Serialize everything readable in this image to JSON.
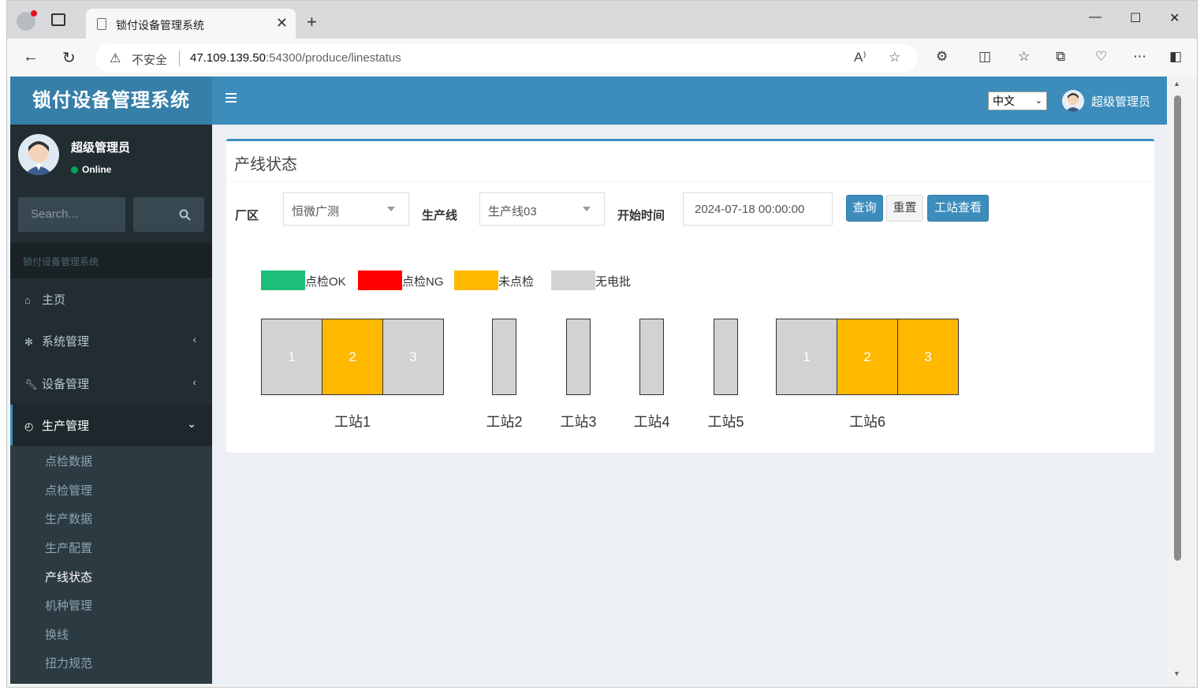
{
  "browser": {
    "tab_title": "锁付设备管理系统",
    "address_insecure": "不安全",
    "url_host": "47.109.139.50",
    "url_rest": ":54300/produce/linestatus"
  },
  "header": {
    "logo": "锁付设备管理系统",
    "language": "中文",
    "user": "超级管理员"
  },
  "sidebar": {
    "user_name": "超级管理员",
    "status": "Online",
    "search_placeholder": "Search...",
    "section_header": "锁付设备管理系统",
    "menu": [
      {
        "label": "主页",
        "icon": "home-icon"
      },
      {
        "label": "系统管理",
        "icon": "gear-icon"
      },
      {
        "label": "设备管理",
        "icon": "wrench-icon"
      },
      {
        "label": "生产管理",
        "icon": "dashboard-icon"
      }
    ],
    "submenu": [
      "点检数据",
      "点检管理",
      "生产数据",
      "生产配置",
      "产线状态",
      "机种管理",
      "换线",
      "扭力规范"
    ],
    "current_submenu": "产线状态"
  },
  "content": {
    "title": "产线状态",
    "filters": {
      "plant_label": "厂区",
      "plant_value": "恒微广测",
      "line_label": "生产线",
      "line_value": "生产线03",
      "start_label": "开始时间",
      "start_value": "2024-07-18 00:00:00"
    },
    "buttons": {
      "query": "查询",
      "reset": "重置",
      "station_view": "工站查看"
    },
    "legend": [
      {
        "label": "点检OK",
        "color": "#1ebe78"
      },
      {
        "label": "点检NG",
        "color": "#ff0000"
      },
      {
        "label": "未点检",
        "color": "#ffb800"
      },
      {
        "label": "无电批",
        "color": "#d2d2d2"
      }
    ],
    "stations": [
      {
        "name": "工站1",
        "cells": [
          {
            "label": "1",
            "status": "无电批"
          },
          {
            "label": "2",
            "status": "未点检"
          },
          {
            "label": "3",
            "status": "无电批"
          }
        ]
      },
      {
        "name": "工站2",
        "cells": [
          {
            "label": "",
            "status": "无电批"
          }
        ]
      },
      {
        "name": "工站3",
        "cells": [
          {
            "label": "",
            "status": "无电批"
          }
        ]
      },
      {
        "name": "工站4",
        "cells": [
          {
            "label": "",
            "status": "无电批"
          }
        ]
      },
      {
        "name": "工站5",
        "cells": [
          {
            "label": "",
            "status": "无电批"
          }
        ]
      },
      {
        "name": "工站6",
        "cells": [
          {
            "label": "1",
            "status": "无电批"
          },
          {
            "label": "2",
            "status": "未点检"
          },
          {
            "label": "3",
            "status": "未点检"
          }
        ]
      }
    ]
  }
}
